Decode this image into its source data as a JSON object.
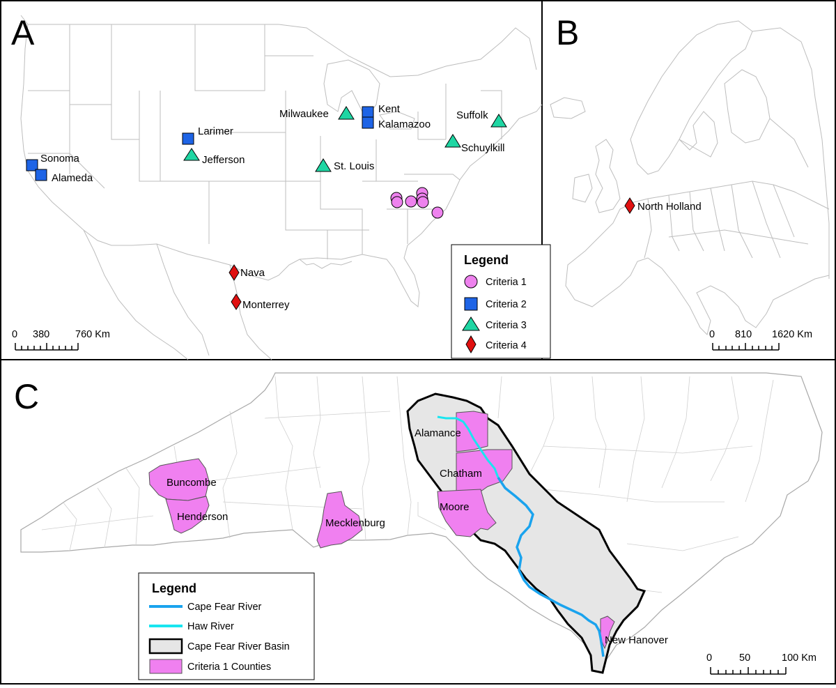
{
  "panels": {
    "a": {
      "letter": "A",
      "scale": {
        "ticks": [
          "0",
          "380",
          "760 Km"
        ]
      },
      "legend": {
        "title": "Legend",
        "items": [
          {
            "label": "Criteria 1",
            "symbol": "circle",
            "color": "#ee82ee"
          },
          {
            "label": "Criteria 2",
            "symbol": "square",
            "color": "#1e64e6"
          },
          {
            "label": "Criteria 3",
            "symbol": "triangle",
            "color": "#1fd6a3"
          },
          {
            "label": "Criteria 4",
            "symbol": "diamond",
            "color": "#e01010"
          }
        ]
      },
      "sites": [
        {
          "name": "Sonoma"
        },
        {
          "name": "Alameda"
        },
        {
          "name": "Larimer"
        },
        {
          "name": "Jefferson"
        },
        {
          "name": "Milwaukee"
        },
        {
          "name": "Kent"
        },
        {
          "name": "Kalamazoo"
        },
        {
          "name": "St. Louis"
        },
        {
          "name": "Suffolk"
        },
        {
          "name": "Schuylkill"
        },
        {
          "name": "Nava"
        },
        {
          "name": "Monterrey"
        }
      ]
    },
    "b": {
      "letter": "B",
      "scale": {
        "ticks": [
          "0",
          "810",
          "1620 Km"
        ]
      },
      "sites": [
        {
          "name": "North Holland"
        }
      ]
    },
    "c": {
      "letter": "C",
      "scale": {
        "ticks": [
          "0",
          "50",
          "100 Km"
        ]
      },
      "legend": {
        "title": "Legend",
        "items": [
          {
            "label": "Cape Fear River",
            "color": "#1aa3ee"
          },
          {
            "label": "Haw River",
            "color": "#19e5f0"
          },
          {
            "label": "Cape Fear River Basin",
            "color": "#e6e6e6"
          },
          {
            "label": "Criteria 1 Counties",
            "color": "#f080f0"
          }
        ]
      },
      "counties": [
        {
          "name": "Alamance"
        },
        {
          "name": "Chatham"
        },
        {
          "name": "Moore"
        },
        {
          "name": "Buncombe"
        },
        {
          "name": "Henderson"
        },
        {
          "name": "Mecklenburg"
        },
        {
          "name": "New Hanover"
        }
      ]
    }
  }
}
